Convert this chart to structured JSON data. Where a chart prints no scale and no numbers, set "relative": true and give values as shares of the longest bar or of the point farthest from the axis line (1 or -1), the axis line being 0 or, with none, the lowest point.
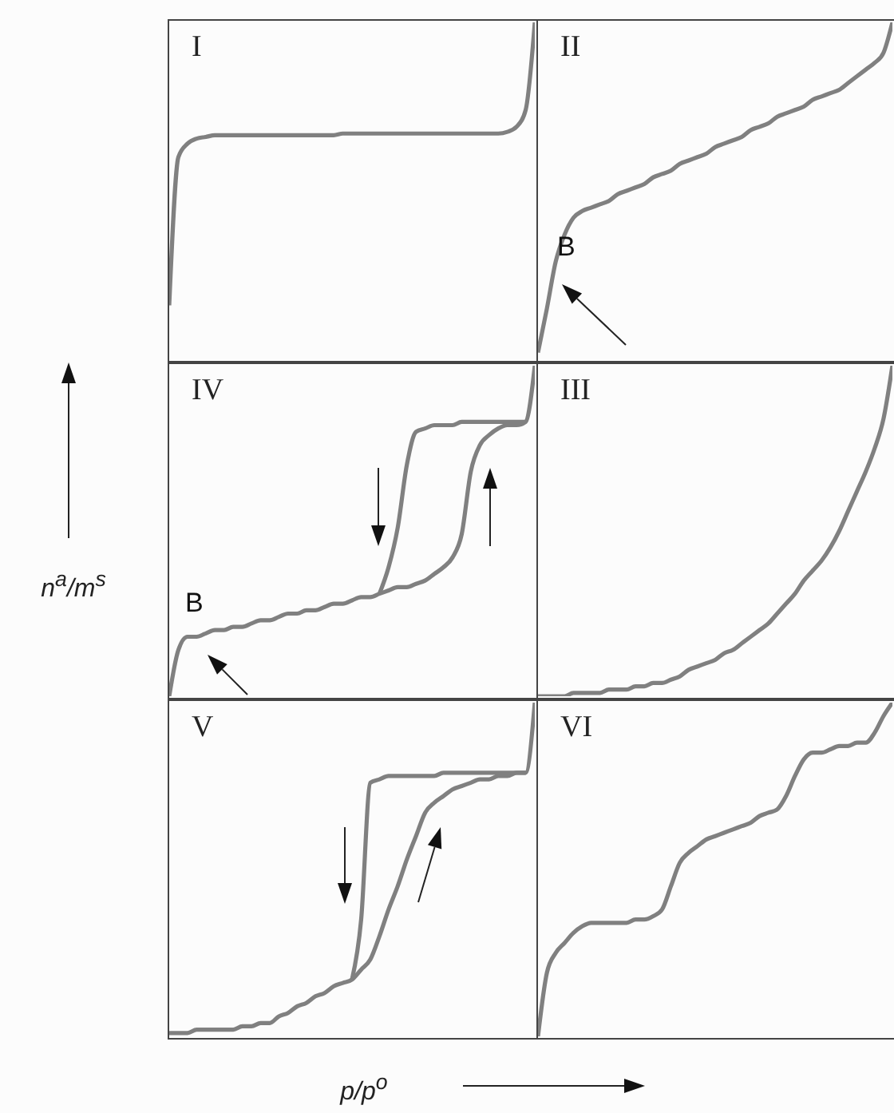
{
  "chart_data": [
    {
      "type": "line",
      "title": "I",
      "relative": true,
      "marker": "none",
      "categories": [
        null,
        null,
        null,
        null,
        null,
        null,
        null,
        null,
        null,
        null,
        null,
        null,
        null,
        null,
        null,
        null,
        null,
        null,
        null,
        null,
        null,
        null,
        null,
        null,
        null,
        null,
        null,
        null,
        null,
        null,
        null,
        null,
        null,
        null,
        null,
        null,
        null,
        null,
        null,
        null,
        null
      ],
      "series": [
        {
          "color": "#808080",
          "values": [
            0.16,
            0.6,
            0.64,
            0.655,
            0.66,
            0.665,
            0.665,
            0.665,
            0.665,
            0.665,
            0.665,
            0.665,
            0.665,
            0.665,
            0.665,
            0.665,
            0.665,
            0.665,
            0.665,
            0.67,
            0.67,
            0.67,
            0.67,
            0.67,
            0.67,
            0.67,
            0.67,
            0.67,
            0.67,
            0.67,
            0.67,
            0.67,
            0.67,
            0.67,
            0.67,
            0.67,
            0.67,
            0.675,
            0.69,
            0.74,
            1
          ]
        }
      ]
    },
    {
      "type": "line",
      "title": "II",
      "relative": true,
      "marker": "none",
      "annotations": [
        "B"
      ],
      "categories": [
        null,
        null,
        null,
        null,
        null,
        null,
        null,
        null,
        null,
        null,
        null,
        null,
        null,
        null,
        null,
        null,
        null,
        null,
        null,
        null,
        null,
        null,
        null,
        null,
        null,
        null,
        null,
        null,
        null,
        null,
        null,
        null,
        null,
        null,
        null,
        null,
        null,
        null,
        null,
        null,
        null
      ],
      "series": [
        {
          "color": "#808080",
          "values": [
            0.02,
            0.15,
            0.29,
            0.37,
            0.42,
            0.44,
            0.45,
            0.46,
            0.47,
            0.49,
            0.5,
            0.51,
            0.52,
            0.54,
            0.55,
            0.56,
            0.58,
            0.59,
            0.6,
            0.61,
            0.63,
            0.64,
            0.65,
            0.66,
            0.68,
            0.69,
            0.7,
            0.72,
            0.73,
            0.74,
            0.75,
            0.77,
            0.78,
            0.79,
            0.8,
            0.82,
            0.84,
            0.86,
            0.88,
            0.91,
            1
          ]
        }
      ]
    },
    {
      "type": "line",
      "title": "IV",
      "relative": true,
      "marker": "none",
      "ylabel": "n$^{a}$/m$^{s}$",
      "annotations": [
        "B"
      ],
      "categories": [
        null,
        null,
        null,
        null,
        null,
        null,
        null,
        null,
        null,
        null,
        null,
        null,
        null,
        null,
        null,
        null,
        null,
        null,
        null,
        null,
        null,
        null,
        null,
        null,
        null,
        null,
        null,
        null,
        null,
        null,
        null,
        null,
        null,
        null,
        null,
        null,
        null,
        null,
        null,
        null,
        null
      ],
      "series": [
        {
          "color": "#808080",
          "values": [
            0,
            0.14,
            0.18,
            0.18,
            0.19,
            0.2,
            0.2,
            0.21,
            0.21,
            0.22,
            0.23,
            0.23,
            0.24,
            0.25,
            0.25,
            0.26,
            0.26,
            0.27,
            0.28,
            0.28,
            0.29,
            0.3,
            0.3,
            0.31,
            0.32,
            0.33,
            0.33,
            0.34,
            0.35,
            0.37,
            0.39,
            0.42,
            0.49,
            0.68,
            0.76,
            0.79,
            0.81,
            0.82,
            0.82,
            0.83,
            1
          ]
        },
        {
          "color": "#808080",
          "values": [
            null,
            null,
            null,
            null,
            null,
            null,
            null,
            null,
            null,
            null,
            null,
            null,
            null,
            null,
            null,
            null,
            null,
            null,
            null,
            null,
            null,
            null,
            null,
            0.31,
            0.39,
            0.51,
            0.7,
            0.8,
            0.81,
            0.82,
            0.82,
            0.82,
            0.83,
            0.83,
            0.83,
            0.83,
            0.83,
            0.83,
            0.83,
            0.83,
            null
          ]
        }
      ]
    },
    {
      "type": "line",
      "title": "III",
      "relative": true,
      "marker": "none",
      "categories": [
        null,
        null,
        null,
        null,
        null,
        null,
        null,
        null,
        null,
        null,
        null,
        null,
        null,
        null,
        null,
        null,
        null,
        null,
        null,
        null,
        null,
        null,
        null,
        null,
        null,
        null,
        null,
        null,
        null,
        null,
        null,
        null,
        null,
        null,
        null,
        null,
        null,
        null,
        null,
        null,
        null
      ],
      "series": [
        {
          "color": "#808080",
          "values": [
            0,
            0,
            0,
            0,
            0.01,
            0.01,
            0.01,
            0.01,
            0.02,
            0.02,
            0.02,
            0.03,
            0.03,
            0.04,
            0.04,
            0.05,
            0.06,
            0.08,
            0.09,
            0.1,
            0.11,
            0.13,
            0.14,
            0.16,
            0.18,
            0.2,
            0.22,
            0.25,
            0.28,
            0.31,
            0.35,
            0.38,
            0.41,
            0.45,
            0.5,
            0.56,
            0.62,
            0.68,
            0.75,
            0.84,
            1
          ]
        }
      ]
    },
    {
      "type": "line",
      "title": "V",
      "relative": true,
      "marker": "none",
      "xlabel": "p/p$^{o}$",
      "categories": [
        null,
        null,
        null,
        null,
        null,
        null,
        null,
        null,
        null,
        null,
        null,
        null,
        null,
        null,
        null,
        null,
        null,
        null,
        null,
        null,
        null,
        null,
        null,
        null,
        null,
        null,
        null,
        null,
        null,
        null,
        null,
        null,
        null,
        null,
        null,
        null,
        null,
        null,
        null,
        null,
        null
      ],
      "series": [
        {
          "color": "#808080",
          "values": [
            0.01,
            0.01,
            0.01,
            0.02,
            0.02,
            0.02,
            0.02,
            0.02,
            0.03,
            0.03,
            0.04,
            0.04,
            0.06,
            0.07,
            0.09,
            0.1,
            0.12,
            0.13,
            0.15,
            0.16,
            0.17,
            0.2,
            0.23,
            0.3,
            0.38,
            0.45,
            0.53,
            0.6,
            0.67,
            0.7,
            0.72,
            0.74,
            0.75,
            0.76,
            0.77,
            0.77,
            0.78,
            0.78,
            0.79,
            0.79,
            1
          ]
        },
        {
          "color": "#808080",
          "values": [
            null,
            null,
            null,
            null,
            null,
            null,
            null,
            null,
            null,
            null,
            null,
            null,
            null,
            null,
            null,
            null,
            null,
            null,
            null,
            null,
            0.17,
            0.35,
            0.76,
            0.77,
            0.78,
            0.78,
            0.78,
            0.78,
            0.78,
            0.78,
            0.79,
            0.79,
            0.79,
            0.79,
            0.79,
            0.79,
            0.79,
            0.79,
            0.79,
            0.79,
            null
          ]
        }
      ]
    },
    {
      "type": "line",
      "title": "VI",
      "relative": true,
      "marker": "none",
      "categories": [
        null,
        null,
        null,
        null,
        null,
        null,
        null,
        null,
        null,
        null,
        null,
        null,
        null,
        null,
        null,
        null,
        null,
        null,
        null,
        null,
        null,
        null,
        null,
        null,
        null,
        null,
        null,
        null,
        null,
        null,
        null,
        null,
        null,
        null,
        null,
        null,
        null,
        null,
        null,
        null,
        null
      ],
      "series": [
        {
          "color": "#808080",
          "values": [
            0,
            0.19,
            0.25,
            0.28,
            0.31,
            0.33,
            0.34,
            0.34,
            0.34,
            0.34,
            0.34,
            0.35,
            0.35,
            0.36,
            0.38,
            0.45,
            0.52,
            0.55,
            0.57,
            0.59,
            0.6,
            0.61,
            0.62,
            0.63,
            0.64,
            0.66,
            0.67,
            0.68,
            0.72,
            0.78,
            0.83,
            0.85,
            0.85,
            0.86,
            0.87,
            0.87,
            0.88,
            0.88,
            0.91,
            0.96,
            1
          ]
        }
      ]
    }
  ]
}
